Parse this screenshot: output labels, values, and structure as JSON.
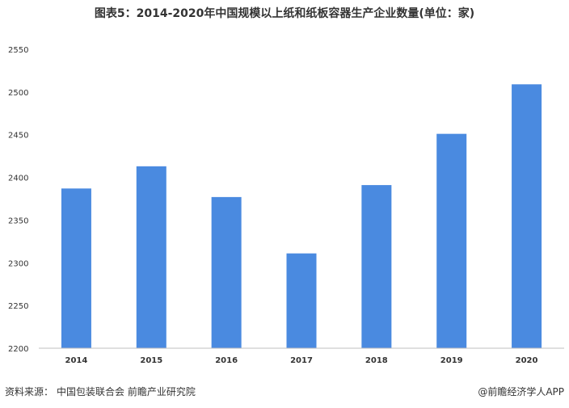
{
  "header": {
    "title": "图表5：2014-2020年中国规模以上纸和纸板容器生产企业数量(单位：家)"
  },
  "footer": {
    "source_label": "资料来源：",
    "source_text": "中国包装联合会 前瞻产业研究院",
    "credit": "@前瞻经济学人APP"
  },
  "colors": {
    "bar": "#4a8ae0",
    "axis": "#bfbfbf",
    "text": "#333333"
  },
  "chart_data": {
    "type": "bar",
    "title": "图表5：2014-2020年中国规模以上纸和纸板容器生产企业数量(单位：家)",
    "xlabel": "",
    "ylabel": "",
    "categories": [
      "2014",
      "2015",
      "2016",
      "2017",
      "2018",
      "2019",
      "2020"
    ],
    "values": [
      2387,
      2413,
      2377,
      2311,
      2391,
      2451,
      2509
    ],
    "ylim": [
      2200,
      2550
    ],
    "yticks": [
      2200,
      2250,
      2300,
      2350,
      2400,
      2450,
      2500,
      2550
    ],
    "grid": false,
    "legend": "none"
  }
}
